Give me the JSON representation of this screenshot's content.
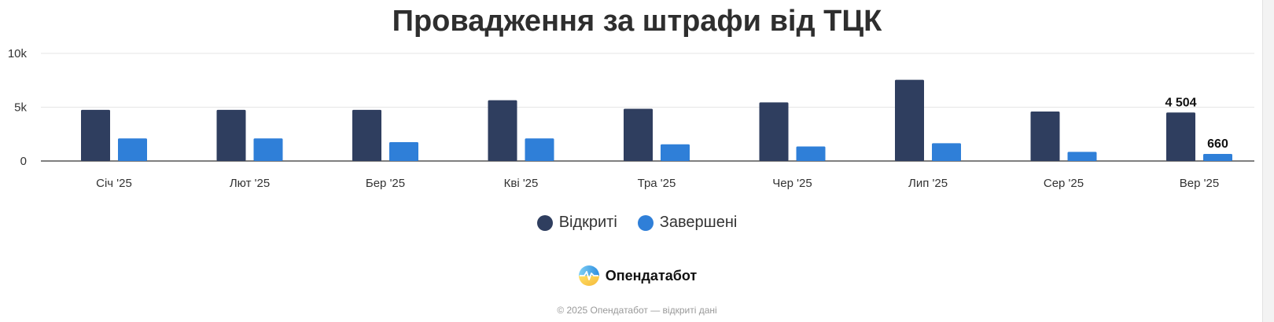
{
  "chart_data": {
    "type": "bar",
    "title": "Провадження за штрафи від ТЦК",
    "categories": [
      "Січ '25",
      "Лют '25",
      "Бер '25",
      "Кві '25",
      "Тра '25",
      "Чер '25",
      "Лип '25",
      "Сер '25",
      "Вер '25"
    ],
    "series": [
      {
        "name": "Відкриті",
        "color": "#2f3e5f",
        "values": [
          4750,
          4750,
          4750,
          5650,
          4850,
          5450,
          7550,
          4600,
          4504
        ]
      },
      {
        "name": "Завершені",
        "color": "#2f7fd8",
        "values": [
          2100,
          2100,
          1750,
          2100,
          1550,
          1350,
          1650,
          850,
          660
        ]
      }
    ],
    "ylim": [
      0,
      10000
    ],
    "y_ticks": [
      {
        "value": 0,
        "label": "0"
      },
      {
        "value": 5000,
        "label": "5k"
      },
      {
        "value": 10000,
        "label": "10k"
      }
    ],
    "data_labels": [
      {
        "series": 0,
        "index": 8,
        "text": "4 504"
      },
      {
        "series": 1,
        "index": 8,
        "text": "660"
      }
    ],
    "grid": true,
    "legend_position": "bottom-center",
    "xlabel": "",
    "ylabel": ""
  },
  "brand": {
    "name": "Опендатабот",
    "icon": "opendatabot-logo-icon"
  },
  "footer": {
    "text": "© 2025 Опендатабот — відкриті дані"
  }
}
